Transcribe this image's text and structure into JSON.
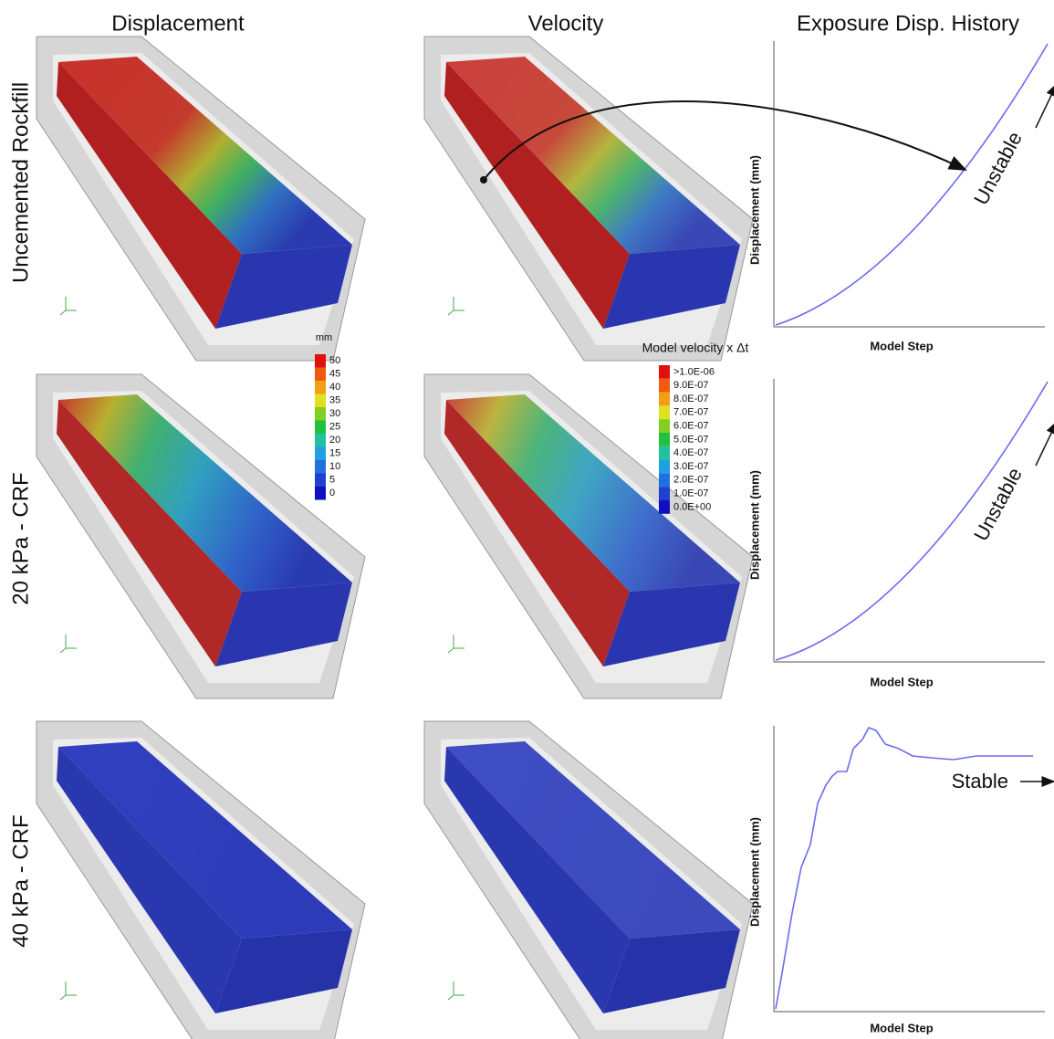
{
  "columns": [
    "Displacement",
    "Velocity",
    "Exposure Disp. History"
  ],
  "rows": [
    "Uncemented Rockfill",
    "20  kPa - CRF",
    "40  kPa - CRF"
  ],
  "displacement_legend": {
    "title": "mm",
    "labels": [
      "50",
      "45",
      "40",
      "35",
      "30",
      "25",
      "20",
      "15",
      "10",
      "5",
      "0"
    ]
  },
  "velocity_legend": {
    "title": "Model velocity x Δt",
    "labels": [
      ">1.0E-06",
      "9.0E-07",
      "8.0E-07",
      "7.0E-07",
      "6.0E-07",
      "5.0E-07",
      "4.0E-07",
      "3.0E-07",
      "2.0E-07",
      "1.0E-07",
      "0.0E+00"
    ]
  },
  "charts": [
    {
      "y_label": "Displacement (mm)",
      "x_label": "Model Step",
      "annotation": "Unstable"
    },
    {
      "y_label": "Displacement (mm)",
      "x_label": "Model Step",
      "annotation": "Unstable"
    },
    {
      "y_label": "Displacement (mm)",
      "x_label": "Model Step",
      "annotation": "Stable"
    }
  ]
}
